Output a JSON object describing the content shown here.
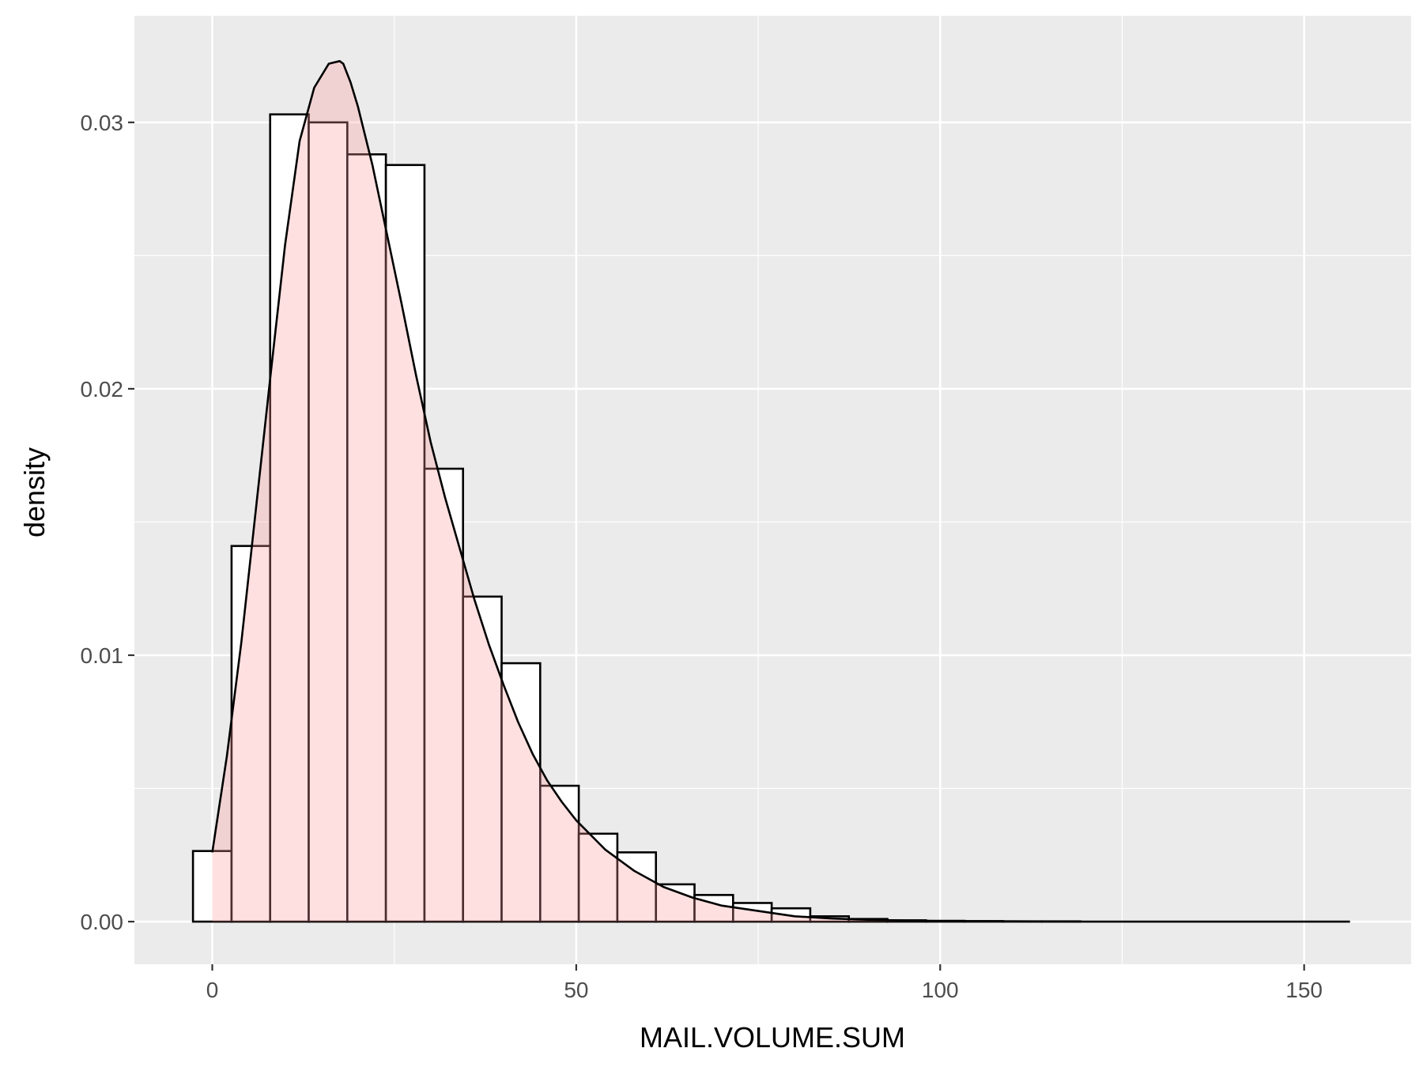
{
  "chart_data": {
    "type": "bar",
    "xlabel": "MAIL.VOLUME.SUM",
    "ylabel": "density",
    "xlim": [
      -10.7,
      164.7
    ],
    "ylim": [
      -0.0016,
      0.034
    ],
    "x_ticks": [
      0,
      50,
      100,
      150
    ],
    "y_ticks": [
      0.0,
      0.01,
      0.02,
      0.03
    ],
    "y_tick_labels": [
      "0.00",
      "0.01",
      "0.02",
      "0.03"
    ],
    "x_minor_gridlines": [
      25,
      75,
      125
    ],
    "y_minor_gridlines": [
      0.005,
      0.015,
      0.025
    ],
    "grid": true,
    "colors": {
      "panel_background": "#ebebeb",
      "gridline": "#ffffff",
      "histogram_fill": "#ffffff",
      "histogram_outline": "#000000",
      "density_fill": "#ff9999",
      "density_line": "#000000"
    },
    "histogram": {
      "bin_edges": [
        -2.65,
        2.65,
        7.95,
        13.25,
        18.55,
        23.85,
        29.15,
        34.45,
        39.75,
        45.05,
        50.35,
        55.65,
        60.95,
        66.25,
        71.55,
        76.85,
        82.15,
        87.45,
        92.75,
        98.05,
        103.35,
        108.65,
        113.95,
        119.25,
        124.55,
        129.85,
        135.15,
        140.45,
        145.75,
        151.05,
        156.35
      ],
      "density": [
        0.00265,
        0.0141,
        0.0303,
        0.03,
        0.0288,
        0.0284,
        0.017,
        0.0122,
        0.0097,
        0.0051,
        0.0033,
        0.0026,
        0.0014,
        0.001,
        0.0007,
        0.0005,
        0.0002,
        0.0001,
        5e-05,
        3e-05,
        2e-05,
        1e-05,
        1e-05,
        0,
        0,
        0,
        0,
        0,
        0,
        0
      ]
    },
    "density_curve": {
      "x": [
        0,
        2,
        4,
        6,
        8,
        10,
        12,
        14,
        16,
        17.5,
        18,
        19,
        20,
        22,
        24,
        26,
        28,
        30,
        32,
        34,
        36,
        38,
        40,
        42,
        44,
        46,
        48,
        50,
        54,
        58,
        62,
        66,
        70,
        75,
        80,
        85,
        90,
        95,
        100,
        110,
        120,
        130,
        140,
        150,
        156.3
      ],
      "y": [
        0.0026,
        0.0062,
        0.0105,
        0.0155,
        0.0205,
        0.0254,
        0.0293,
        0.0313,
        0.0322,
        0.0323,
        0.0322,
        0.0315,
        0.0306,
        0.0284,
        0.0258,
        0.0232,
        0.0205,
        0.018,
        0.0159,
        0.014,
        0.0121,
        0.0104,
        0.0089,
        0.0075,
        0.0063,
        0.0053,
        0.0045,
        0.0038,
        0.0027,
        0.0019,
        0.0013,
        0.0009,
        0.0006,
        0.0004,
        0.0002,
        0.00012,
        7e-05,
        4e-05,
        2e-05,
        1e-05,
        0,
        0,
        0,
        0,
        0
      ]
    }
  }
}
